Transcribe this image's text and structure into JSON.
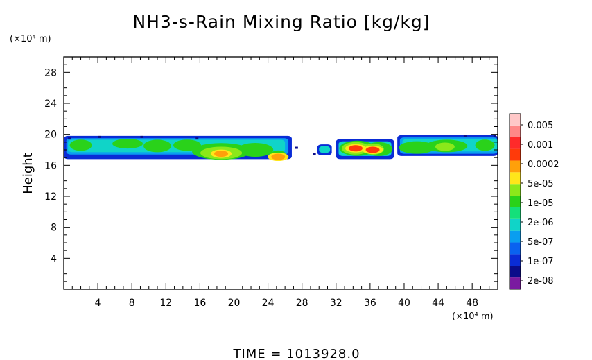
{
  "chart_data": {
    "type": "heatmap",
    "title": "NH3-s-Rain Mixing Ratio [kg/kg]",
    "ylabel": "Height",
    "xunit": "(×10⁴ m)",
    "yunit": "(×10⁴ m)",
    "xlim": [
      0,
      51
    ],
    "ylim": [
      0,
      30
    ],
    "xticks": [
      4,
      8,
      12,
      16,
      20,
      24,
      28,
      32,
      36,
      40,
      44,
      48
    ],
    "yticks": [
      4,
      8,
      12,
      16,
      20,
      24,
      28
    ],
    "grid": false,
    "legend": "colorbar-right",
    "colorbar": {
      "colors": [
        "#7a1aa0",
        "#0a0c8a",
        "#0a2cd6",
        "#0a62f0",
        "#0a9ef0",
        "#10d4c8",
        "#14e07a",
        "#2ad21a",
        "#8ce81a",
        "#ffe61a",
        "#ffa00a",
        "#ff3a0a",
        "#ff2a2a",
        "#ff8888",
        "#ffc8c8"
      ],
      "labels": [
        "2e-08",
        "1e-07",
        "5e-07",
        "2e-06",
        "1e-05",
        "5e-05",
        "0.0002",
        "0.001",
        "0.005"
      ]
    },
    "cloud_bands": [
      {
        "x": [
          0,
          26.8
        ],
        "y": [
          16.8,
          19.8
        ]
      },
      {
        "x": [
          29.8,
          31.5
        ],
        "y": [
          17.3,
          18.7
        ]
      },
      {
        "x": [
          32.0,
          38.8
        ],
        "y": [
          16.8,
          19.4
        ]
      },
      {
        "x": [
          39.2,
          51
        ],
        "y": [
          17.2,
          19.9
        ]
      }
    ],
    "cores": [
      {
        "x": 18.5,
        "y": 17.5,
        "level": "0.0002"
      },
      {
        "x": 34.3,
        "y": 18.2,
        "level": "0.001"
      },
      {
        "x": 36.3,
        "y": 18.0,
        "level": "0.001"
      },
      {
        "x": 25.2,
        "y": 17.1,
        "level": "0.0002"
      }
    ]
  },
  "footer": "TIME  =  1013928.0"
}
